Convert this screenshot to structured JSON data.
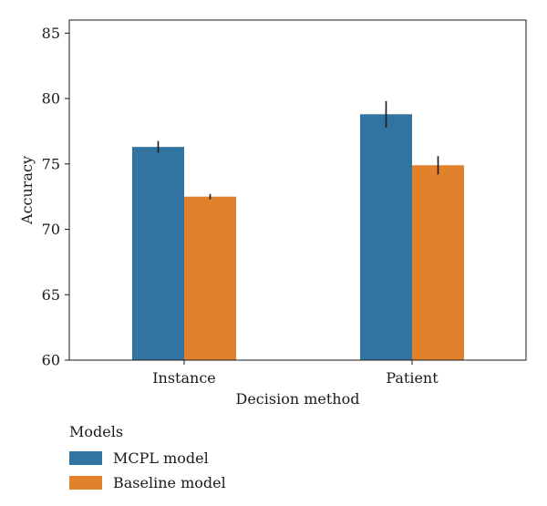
{
  "chart_data": {
    "type": "bar",
    "categories": [
      "Instance",
      "Patient"
    ],
    "series": [
      {
        "name": "MCPL model",
        "color": "#3274a1",
        "values": [
          76.3,
          78.8
        ],
        "errors": [
          0.45,
          1.0
        ]
      },
      {
        "name": "Baseline model",
        "color": "#e1812c",
        "values": [
          72.5,
          74.9
        ],
        "errors": [
          0.2,
          0.7
        ]
      }
    ],
    "title": "",
    "xlabel": "Decision method",
    "ylabel": "Accuracy",
    "ylim": [
      60,
      86
    ],
    "yticks": [
      60,
      65,
      70,
      75,
      80,
      85
    ],
    "grid": false,
    "legend": {
      "title": "Models",
      "placement": "below"
    }
  }
}
